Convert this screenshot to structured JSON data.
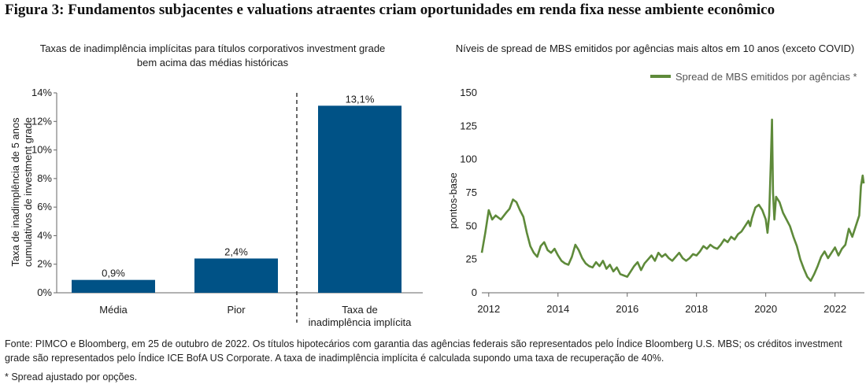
{
  "figure_title": "Figura 3: Fundamentos subjacentes e valuations atraentes criam oportunidades em renda fixa nesse ambiente econômico",
  "source": "Fonte: PIMCO e Bloomberg, em 25 de outubro de 2022. Os títulos hipotecários com garantia das agências federais são representados pelo Índice Bloomberg U.S. MBS; os créditos investment grade são representados pelo Índice ICE BofA US Corporate. A taxa de inadimplência implícita é calculada supondo uma taxa de recuperação de 40%.",
  "note": "* Spread ajustado por opções.",
  "colors": {
    "bar": "#005286",
    "line": "#5e8a3a"
  },
  "chart_data": [
    {
      "type": "bar",
      "title": "Taxas de inadimplência implícitas para títulos corporativos investment grade bem acima das médias históricas",
      "title_lines": [
        "Taxas de inadimplência implícitas para títulos corporativos investment grade",
        "bem acima das médias históricas"
      ],
      "ylabel": "Taxa de inadimplência de 5 anos cumulativos de investment grade",
      "ylabel_lines": [
        "Taxa de inadimplência de 5 anos",
        "cumulativos de investment grade"
      ],
      "categories": [
        "Média",
        "Pior",
        "Taxa de inadimplência implícita"
      ],
      "category_lines": [
        [
          "Média"
        ],
        [
          "Pior"
        ],
        [
          "Taxa de",
          "inadimplência implícita"
        ]
      ],
      "values": [
        0.9,
        2.4,
        13.1
      ],
      "data_labels": [
        "0,9%",
        "2,4%",
        "13,1%"
      ],
      "ylim": [
        0,
        14
      ],
      "yticks": [
        0,
        2,
        4,
        6,
        8,
        10,
        12,
        14
      ],
      "ytick_labels": [
        "0%",
        "2%",
        "4%",
        "6%",
        "8%",
        "10%",
        "12%",
        "14%"
      ],
      "divider": "dashed line between Pior and Taxa de inadimplência implícita",
      "grid": false
    },
    {
      "type": "line",
      "title": "Níveis de spread de MBS emitidos por agências mais altos em 10 anos (exceto COVID)",
      "ylabel": "pontos-base",
      "xlim": [
        2011.8,
        2022.85
      ],
      "ylim": [
        0,
        150
      ],
      "xticks": [
        2012,
        2014,
        2016,
        2018,
        2020,
        2022
      ],
      "yticks": [
        0,
        25,
        50,
        75,
        100,
        125,
        150
      ],
      "legend": "top-right",
      "grid": false,
      "series": [
        {
          "name": "Spread de MBS emitidos por agências *",
          "points": [
            [
              2011.8,
              30
            ],
            [
              2011.9,
              45
            ],
            [
              2012.0,
              62
            ],
            [
              2012.1,
              55
            ],
            [
              2012.2,
              58
            ],
            [
              2012.35,
              55
            ],
            [
              2012.5,
              60
            ],
            [
              2012.6,
              63
            ],
            [
              2012.7,
              70
            ],
            [
              2012.8,
              68
            ],
            [
              2012.9,
              62
            ],
            [
              2013.0,
              57
            ],
            [
              2013.1,
              45
            ],
            [
              2013.2,
              35
            ],
            [
              2013.3,
              30
            ],
            [
              2013.4,
              27
            ],
            [
              2013.5,
              35
            ],
            [
              2013.6,
              38
            ],
            [
              2013.7,
              32
            ],
            [
              2013.8,
              30
            ],
            [
              2013.9,
              33
            ],
            [
              2014.0,
              28
            ],
            [
              2014.1,
              24
            ],
            [
              2014.2,
              22
            ],
            [
              2014.3,
              21
            ],
            [
              2014.4,
              27
            ],
            [
              2014.5,
              36
            ],
            [
              2014.6,
              32
            ],
            [
              2014.7,
              26
            ],
            [
              2014.8,
              22
            ],
            [
              2014.9,
              20
            ],
            [
              2015.0,
              19
            ],
            [
              2015.1,
              23
            ],
            [
              2015.2,
              20
            ],
            [
              2015.3,
              24
            ],
            [
              2015.4,
              18
            ],
            [
              2015.5,
              21
            ],
            [
              2015.6,
              16
            ],
            [
              2015.7,
              19
            ],
            [
              2015.8,
              14
            ],
            [
              2015.9,
              13
            ],
            [
              2016.0,
              12
            ],
            [
              2016.1,
              16
            ],
            [
              2016.2,
              20
            ],
            [
              2016.3,
              23
            ],
            [
              2016.4,
              17
            ],
            [
              2016.5,
              22
            ],
            [
              2016.6,
              25
            ],
            [
              2016.7,
              28
            ],
            [
              2016.8,
              24
            ],
            [
              2016.9,
              30
            ],
            [
              2017.0,
              27
            ],
            [
              2017.1,
              29
            ],
            [
              2017.2,
              26
            ],
            [
              2017.3,
              24
            ],
            [
              2017.4,
              27
            ],
            [
              2017.5,
              30
            ],
            [
              2017.6,
              26
            ],
            [
              2017.7,
              24
            ],
            [
              2017.8,
              26
            ],
            [
              2017.9,
              29
            ],
            [
              2018.0,
              28
            ],
            [
              2018.1,
              31
            ],
            [
              2018.2,
              35
            ],
            [
              2018.3,
              33
            ],
            [
              2018.4,
              36
            ],
            [
              2018.5,
              34
            ],
            [
              2018.6,
              33
            ],
            [
              2018.7,
              36
            ],
            [
              2018.8,
              40
            ],
            [
              2018.9,
              38
            ],
            [
              2019.0,
              42
            ],
            [
              2019.1,
              40
            ],
            [
              2019.2,
              44
            ],
            [
              2019.3,
              46
            ],
            [
              2019.4,
              50
            ],
            [
              2019.5,
              54
            ],
            [
              2019.55,
              50
            ],
            [
              2019.6,
              56
            ],
            [
              2019.7,
              64
            ],
            [
              2019.8,
              66
            ],
            [
              2019.9,
              62
            ],
            [
              2020.0,
              55
            ],
            [
              2020.05,
              45
            ],
            [
              2020.1,
              58
            ],
            [
              2020.15,
              100
            ],
            [
              2020.18,
              130
            ],
            [
              2020.21,
              75
            ],
            [
              2020.25,
              55
            ],
            [
              2020.3,
              72
            ],
            [
              2020.4,
              68
            ],
            [
              2020.5,
              60
            ],
            [
              2020.6,
              55
            ],
            [
              2020.7,
              50
            ],
            [
              2020.8,
              42
            ],
            [
              2020.9,
              35
            ],
            [
              2021.0,
              25
            ],
            [
              2021.1,
              18
            ],
            [
              2021.2,
              12
            ],
            [
              2021.3,
              9
            ],
            [
              2021.4,
              14
            ],
            [
              2021.5,
              20
            ],
            [
              2021.6,
              27
            ],
            [
              2021.7,
              31
            ],
            [
              2021.8,
              26
            ],
            [
              2021.9,
              30
            ],
            [
              2022.0,
              34
            ],
            [
              2022.1,
              28
            ],
            [
              2022.2,
              33
            ],
            [
              2022.3,
              36
            ],
            [
              2022.4,
              48
            ],
            [
              2022.5,
              42
            ],
            [
              2022.6,
              50
            ],
            [
              2022.7,
              58
            ],
            [
              2022.75,
              80
            ],
            [
              2022.8,
              88
            ],
            [
              2022.83,
              82
            ]
          ]
        }
      ]
    }
  ]
}
